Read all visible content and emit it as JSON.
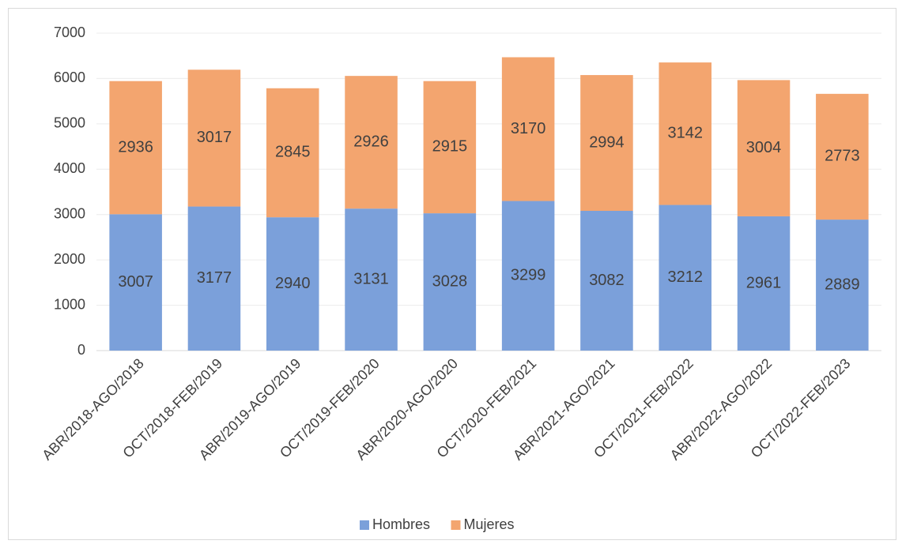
{
  "chart_data": {
    "type": "bar",
    "stacked": true,
    "categories": [
      "ABR/2018-AGO/2018",
      "OCT/2018-FEB/2019",
      "ABR/2019-AGO/2019",
      "OCT/2019-FEB/2020",
      "ABR/2020-AGO/2020",
      "OCT/2020-FEB/2021",
      "ABR/2021-AGO/2021",
      "OCT/2021-FEB/2022",
      "ABR/2022-AGO/2022",
      "OCT/2022-FEB/2023"
    ],
    "series": [
      {
        "name": "Hombres",
        "color": "#7ba0da",
        "values": [
          3007,
          3177,
          2940,
          3131,
          3028,
          3299,
          3082,
          3212,
          2961,
          2889
        ]
      },
      {
        "name": "Mujeres",
        "color": "#f3a56f",
        "values": [
          2936,
          3017,
          2845,
          2926,
          2915,
          3170,
          2994,
          3142,
          3004,
          2773
        ]
      }
    ],
    "ylim": [
      0,
      7000
    ],
    "yticks": [
      0,
      1000,
      2000,
      3000,
      4000,
      5000,
      6000,
      7000
    ],
    "grid": true,
    "legend": "bottom"
  }
}
